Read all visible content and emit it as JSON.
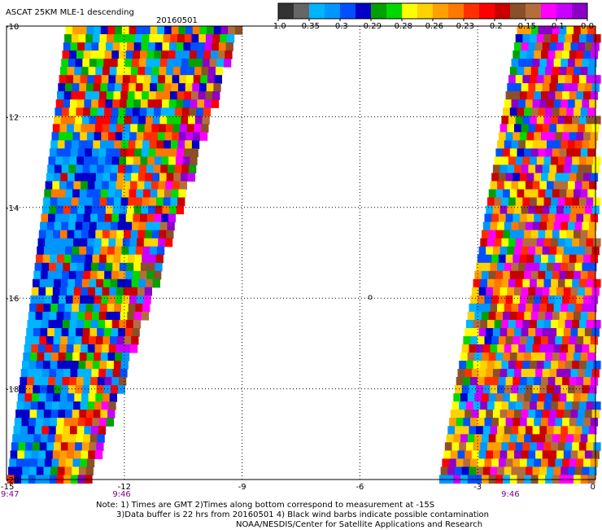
{
  "header": {
    "product": "ASCAT 25KM MLE-1 descending",
    "date": "20160501"
  },
  "colorbar": {
    "colors": [
      "#333333",
      "#666666",
      "#00b4ff",
      "#0096ff",
      "#0050ff",
      "#0000c8",
      "#00a000",
      "#00d800",
      "#ffff00",
      "#ffd200",
      "#ffa000",
      "#ff7800",
      "#ff3000",
      "#ff0000",
      "#c80000",
      "#8c5028",
      "#b46e3c",
      "#ff00ff",
      "#c800ff",
      "#8c00c8"
    ],
    "labels": [
      "-1.0",
      "-0.35",
      "-0.3",
      "-0.29",
      "-0.28",
      "-0.26",
      "-0.23",
      "-0.2",
      "-0.15",
      "-0.1",
      "0.0"
    ]
  },
  "chart_data": {
    "type": "heatmap",
    "title": "ASCAT 25KM MLE-1 descending 20160501",
    "x_ticks": [
      "-15",
      "-12",
      "-9",
      "-6",
      "-3",
      "0"
    ],
    "y_ticks": [
      "-10",
      "-12",
      "-14",
      "-16",
      "-18",
      "-20"
    ],
    "xlim": [
      -15,
      0
    ],
    "ylim": [
      -20,
      -10
    ],
    "grid": true,
    "time_labels": [
      "9:47",
      "9:46",
      "9:46"
    ],
    "marker": "o",
    "swaths": [
      {
        "name": "west swath",
        "lon_top": [
          -13.5,
          -9.1
        ],
        "lon_bottom": [
          -15,
          -12.9
        ]
      },
      {
        "name": "east swath",
        "lon_top": [
          -2.0,
          0
        ],
        "lon_bottom": [
          -4.0,
          0
        ]
      }
    ],
    "palette": [
      "#00b4ff",
      "#0096ff",
      "#0050ff",
      "#0000c8",
      "#00a000",
      "#00d800",
      "#ffff00",
      "#ffd200",
      "#ffa000",
      "#ff7800",
      "#ff3000",
      "#ff0000",
      "#c80000",
      "#8c5028",
      "#b46e3c",
      "#ff00ff",
      "#c800ff",
      "#8c00c8"
    ],
    "cell_deg": 0.18,
    "seed": 20160501
  },
  "notes": {
    "line1": "Note: 1) Times are GMT 2)Times along bottom correspond to measurement at -15S",
    "line2": "3)Data buffer is 22 hrs from 20160501 4) Black wind barbs indicate possible contamination",
    "line3": "NOAA/NESDIS/Center for Satellite Applications and Research"
  }
}
